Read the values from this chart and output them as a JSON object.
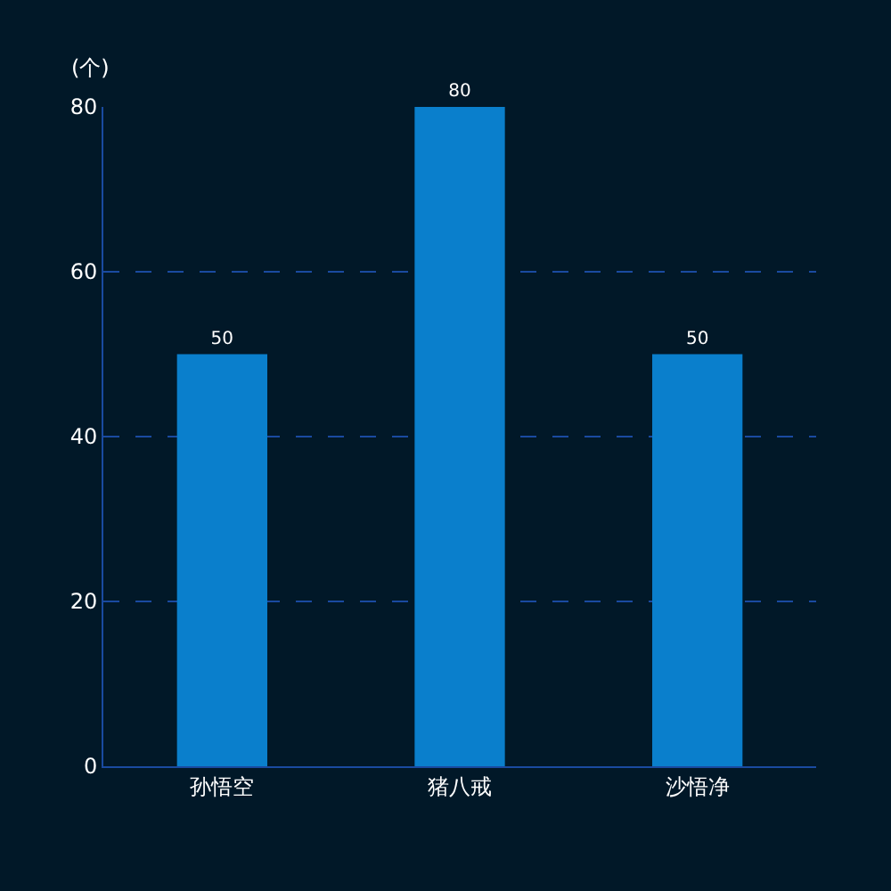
{
  "chart_data": {
    "type": "bar",
    "ylabel": "(个)",
    "categories": [
      "孙悟空",
      "猪八戒",
      "沙悟净"
    ],
    "values": [
      50,
      80,
      50
    ],
    "color": "#0a7fcc",
    "ylim": [
      0,
      80
    ],
    "yticks": [
      0,
      20,
      40,
      60,
      80
    ],
    "grid": "y",
    "data_labels": true
  }
}
